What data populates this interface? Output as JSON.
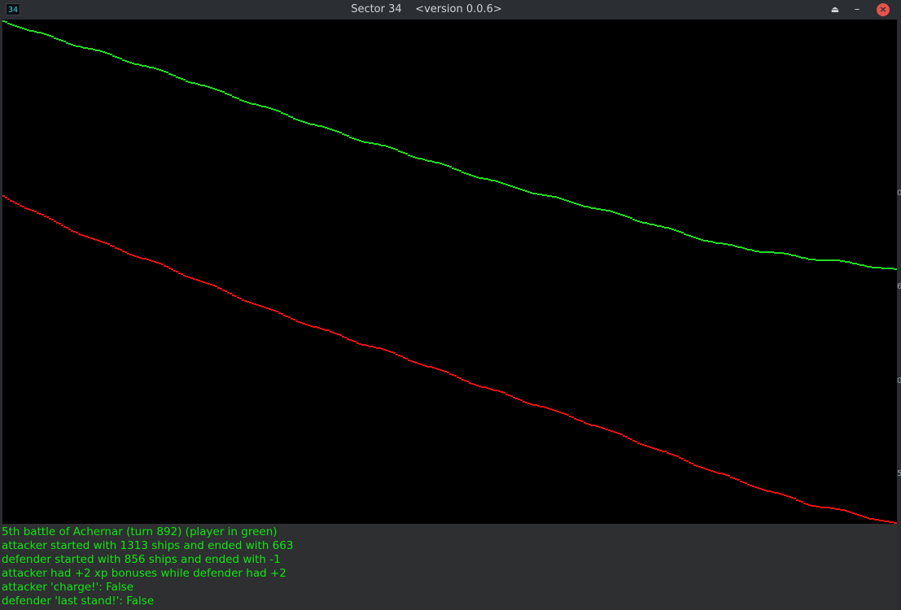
{
  "window": {
    "app_icon_text": "34",
    "title": "Sector 34    <version 0.0.6>",
    "buttons": {
      "shade": "⏏",
      "minimize": "–",
      "close": "×"
    }
  },
  "battle_graph": {
    "attacker_color": "#22dd22",
    "defender_color": "#ee1111",
    "attacker_series": [
      1313,
      1240,
      1160,
      1085,
      1000,
      930,
      863,
      797,
      735,
      692,
      663
    ],
    "defender_series": [
      856,
      745,
      650,
      560,
      470,
      390,
      310,
      220,
      135,
      50,
      -1
    ]
  },
  "side_marks": [
    "0",
    "6",
    "0",
    "5"
  ],
  "log": {
    "lines": [
      "5th battle of Achernar (turn 892) (player in green)",
      "attacker started with 1313 ships and ended with 663",
      "defender started with 856 ships and ended with -1",
      "attacker had +2 xp bonuses while defender had +2",
      "attacker 'charge!': False",
      "defender 'last stand!': False"
    ]
  }
}
